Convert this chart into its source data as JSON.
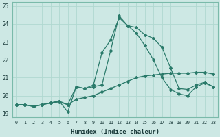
{
  "xlabel": "Humidex (Indice chaleur)",
  "background_color": "#cde8e4",
  "grid_color": "#b0d8d0",
  "line_color": "#2a7a6a",
  "x_ticks": [
    0,
    1,
    2,
    3,
    4,
    5,
    6,
    7,
    8,
    9,
    10,
    11,
    12,
    13,
    14,
    15,
    16,
    17,
    18,
    19,
    20,
    21,
    22,
    23
  ],
  "ylim": [
    18.8,
    25.2
  ],
  "yticks": [
    19,
    20,
    21,
    22,
    23,
    24,
    25
  ],
  "series1_x": [
    0,
    1,
    2,
    3,
    4,
    5,
    6,
    7,
    8,
    9,
    10,
    11,
    12,
    13,
    14,
    15,
    16,
    17,
    18,
    19,
    20,
    21,
    22,
    23
  ],
  "series1_y": [
    19.5,
    19.5,
    19.4,
    19.5,
    19.6,
    19.7,
    19.5,
    20.5,
    20.4,
    20.6,
    22.4,
    23.1,
    24.35,
    23.9,
    23.8,
    23.4,
    23.2,
    22.7,
    21.55,
    20.4,
    20.35,
    20.6,
    20.75,
    20.5
  ],
  "series2_x": [
    0,
    1,
    2,
    3,
    4,
    5,
    6,
    7,
    8,
    9,
    10,
    11,
    12,
    13,
    14,
    15,
    16,
    17,
    18,
    19,
    20,
    21,
    22,
    23
  ],
  "series2_y": [
    19.5,
    19.5,
    19.4,
    19.5,
    19.6,
    19.7,
    19.1,
    20.5,
    20.4,
    20.5,
    20.6,
    22.5,
    24.45,
    23.9,
    23.5,
    22.8,
    22.0,
    21.0,
    20.35,
    20.1,
    20.0,
    20.5,
    20.7,
    20.5
  ],
  "series3_x": [
    0,
    1,
    2,
    3,
    4,
    5,
    6,
    7,
    8,
    9,
    10,
    11,
    12,
    13,
    14,
    15,
    16,
    17,
    18,
    19,
    20,
    21,
    22,
    23
  ],
  "series3_y": [
    19.5,
    19.5,
    19.4,
    19.5,
    19.6,
    19.65,
    19.5,
    19.8,
    19.9,
    20.0,
    20.2,
    20.4,
    20.6,
    20.8,
    21.0,
    21.1,
    21.15,
    21.2,
    21.25,
    21.25,
    21.25,
    21.3,
    21.3,
    21.2
  ]
}
